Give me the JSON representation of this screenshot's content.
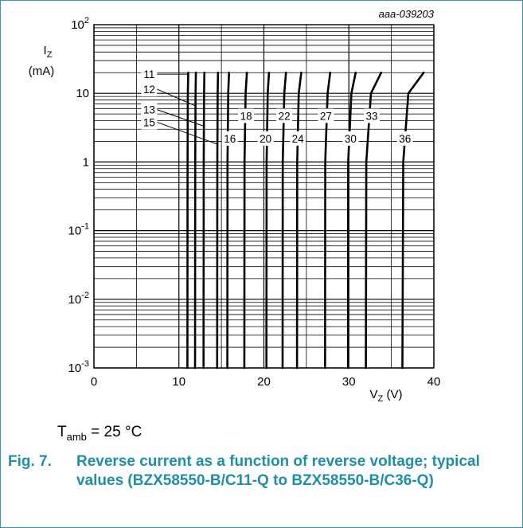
{
  "figure_id": "aaa-039203",
  "ambient": {
    "symbol": "T",
    "subscript": "amb",
    "value": " = 25 °C"
  },
  "caption": {
    "number": "Fig. 7.",
    "text": "Reverse current as a function of reverse voltage; typical values (BZX58550-B/C11-Q to BZX58550-B/C36-Q)"
  },
  "colors": {
    "curve": "#000000",
    "grid": "#000000",
    "caption": "#1e8fa7",
    "frame": "#3b93b0"
  },
  "chart_data": {
    "type": "line",
    "xlabel": "VZ (V)",
    "ylabel": "IZ (mA)",
    "xlim": [
      0,
      40
    ],
    "ylim": [
      0.001,
      100
    ],
    "yscale": "log",
    "grid": true,
    "x_ticks": [
      0,
      10,
      20,
      30,
      40
    ],
    "y_ticks": [
      {
        "base": "10",
        "exp": "-3",
        "value": 0.001
      },
      {
        "base": "10",
        "exp": "-2",
        "value": 0.01
      },
      {
        "base": "10",
        "exp": "-1",
        "value": 0.1
      },
      {
        "base": "1",
        "exp": "",
        "value": 1
      },
      {
        "base": "10",
        "exp": "",
        "value": 10
      },
      {
        "base": "10",
        "exp": "2",
        "value": 100
      }
    ],
    "series": [
      {
        "name": "11",
        "points": [
          [
            11.0,
            0.001
          ],
          [
            11.02,
            1
          ],
          [
            11.05,
            10
          ],
          [
            11.1,
            20
          ]
        ]
      },
      {
        "name": "12",
        "points": [
          [
            11.9,
            0.001
          ],
          [
            11.92,
            1
          ],
          [
            11.96,
            10
          ],
          [
            12.0,
            20
          ]
        ]
      },
      {
        "name": "13",
        "points": [
          [
            12.9,
            0.001
          ],
          [
            12.92,
            1
          ],
          [
            12.96,
            10
          ],
          [
            13.0,
            20
          ]
        ]
      },
      {
        "name": "15",
        "points": [
          [
            14.5,
            0.001
          ],
          [
            14.52,
            1
          ],
          [
            14.56,
            10
          ],
          [
            14.6,
            20
          ]
        ]
      },
      {
        "name": "16",
        "points": [
          [
            15.7,
            0.001
          ],
          [
            15.72,
            1
          ],
          [
            15.8,
            10
          ],
          [
            15.9,
            20
          ]
        ]
      },
      {
        "name": "18",
        "points": [
          [
            17.7,
            0.001
          ],
          [
            17.72,
            1
          ],
          [
            17.85,
            10
          ],
          [
            18.0,
            20
          ]
        ]
      },
      {
        "name": "20",
        "points": [
          [
            20.3,
            0.001
          ],
          [
            20.32,
            1
          ],
          [
            20.45,
            10
          ],
          [
            20.6,
            20
          ]
        ]
      },
      {
        "name": "22",
        "points": [
          [
            22.2,
            0.001
          ],
          [
            22.22,
            1
          ],
          [
            22.4,
            10
          ],
          [
            22.6,
            20
          ]
        ]
      },
      {
        "name": "24",
        "points": [
          [
            23.9,
            0.001
          ],
          [
            23.92,
            1
          ],
          [
            24.1,
            10
          ],
          [
            24.4,
            20
          ]
        ]
      },
      {
        "name": "27",
        "points": [
          [
            27.2,
            0.001
          ],
          [
            27.22,
            1
          ],
          [
            27.5,
            10
          ],
          [
            27.8,
            20
          ]
        ]
      },
      {
        "name": "30",
        "points": [
          [
            29.9,
            0.001
          ],
          [
            29.92,
            1
          ],
          [
            30.3,
            10
          ],
          [
            30.8,
            20
          ]
        ]
      },
      {
        "name": "33",
        "points": [
          [
            32.0,
            0.001
          ],
          [
            32.05,
            1
          ],
          [
            32.6,
            10
          ],
          [
            33.8,
            20
          ]
        ]
      },
      {
        "name": "36",
        "points": [
          [
            36.3,
            0.001
          ],
          [
            36.4,
            1
          ],
          [
            37.0,
            10
          ],
          [
            38.8,
            20
          ]
        ]
      }
    ],
    "labels": [
      {
        "text": "11",
        "x": 6.5,
        "y": 19,
        "target": [
          11.1,
          19
        ]
      },
      {
        "text": "12",
        "x": 6.5,
        "y": 11.5,
        "target": [
          12.0,
          6.5
        ]
      },
      {
        "text": "13",
        "x": 6.5,
        "y": 5.8,
        "target": [
          13.0,
          3.3
        ]
      },
      {
        "text": "15",
        "x": 6.5,
        "y": 3.8,
        "target": [
          14.6,
          1.8
        ]
      },
      {
        "text": "16",
        "x": 16.0,
        "y": 2.2
      },
      {
        "text": "18",
        "x": 17.9,
        "y": 4.7
      },
      {
        "text": "20",
        "x": 20.2,
        "y": 2.2
      },
      {
        "text": "22",
        "x": 22.4,
        "y": 4.7
      },
      {
        "text": "24",
        "x": 24.0,
        "y": 2.2
      },
      {
        "text": "27",
        "x": 27.3,
        "y": 4.7
      },
      {
        "text": "30",
        "x": 30.2,
        "y": 2.2
      },
      {
        "text": "33",
        "x": 32.7,
        "y": 4.7
      },
      {
        "text": "36",
        "x": 36.6,
        "y": 2.2
      }
    ]
  }
}
